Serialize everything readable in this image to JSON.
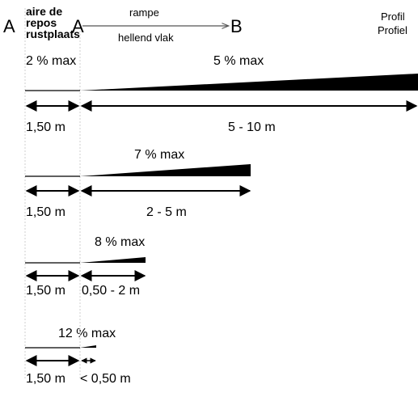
{
  "header": {
    "point_a_left": "A",
    "rest_area_fr_1": "aire de",
    "rest_area_fr_2": "repos",
    "rest_area_nl": "rustplaats",
    "point_a_right": "A",
    "ramp_fr": "rampe",
    "ramp_nl": "hellend vlak",
    "point_b": "B",
    "profile_fr": "Profil",
    "profile_nl": "Profiel"
  },
  "rows": [
    {
      "slope": "5 % max",
      "landing_slope": "2 % max",
      "landing_length": "1,50 m",
      "ramp_length": "5 - 10 m"
    },
    {
      "slope": "7 % max",
      "landing_length": "1,50 m",
      "ramp_length": "2 - 5 m"
    },
    {
      "slope": "8 % max",
      "landing_length": "1,50 m",
      "ramp_length": "0,50 - 2 m"
    },
    {
      "slope": "12 % max",
      "landing_length": "1,50 m",
      "ramp_length": "< 0,50 m"
    }
  ],
  "colors": {
    "line": "#000000",
    "divider": "#bdbdbd"
  }
}
